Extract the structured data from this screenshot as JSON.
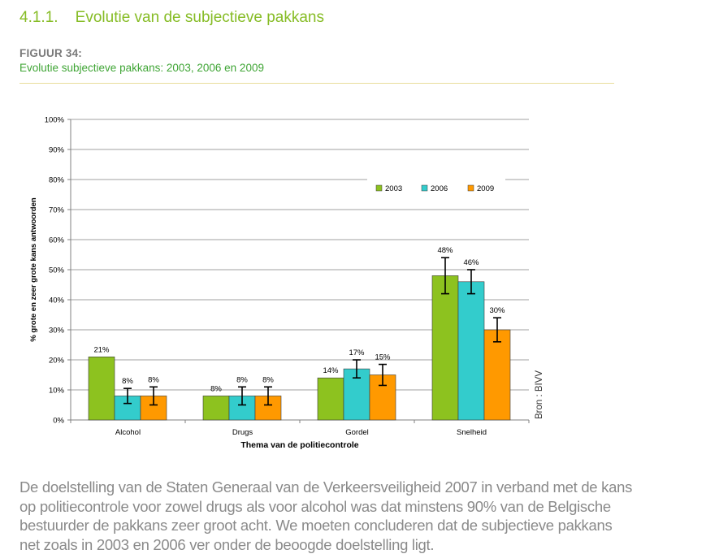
{
  "section": {
    "number": "4.1.1.",
    "title": "Evolutie van de subjectieve pakkans"
  },
  "figure": {
    "label": "FIGUUR 34:",
    "caption": "Evolutie subjectieve pakkans: 2003, 2006 en 2009",
    "source": "Bron : BIVV"
  },
  "colors": {
    "2003": "#8dc21f",
    "2006": "#33cccc",
    "2009": "#ff9900",
    "heading": "#86bc25",
    "caption": "#3fa535"
  },
  "chart_data": {
    "type": "bar",
    "categories": [
      "Alcohol",
      "Drugs",
      "Gordel",
      "Snelheid"
    ],
    "series": [
      {
        "name": "2003",
        "values": [
          21,
          8,
          14,
          48
        ],
        "labels": [
          "21%",
          "8%",
          "14%",
          "48%"
        ],
        "error_plus_minus": [
          0,
          0,
          0,
          6
        ]
      },
      {
        "name": "2006",
        "values": [
          8,
          8,
          17,
          46
        ],
        "labels": [
          "8%",
          "8%",
          "17%",
          "46%"
        ],
        "error_plus_minus": [
          2.5,
          3,
          3,
          4
        ]
      },
      {
        "name": "2009",
        "values": [
          8,
          8,
          15,
          30
        ],
        "labels": [
          "8%",
          "8%",
          "15%",
          "30%"
        ],
        "error_plus_minus": [
          3,
          3,
          3.5,
          4
        ]
      }
    ],
    "xlabel": "Thema van de politiecontrole",
    "ylabel": "% grote en zeer grote kans antwoorden",
    "ylim": [
      0,
      100
    ],
    "yticks": [
      "0%",
      "10%",
      "20%",
      "30%",
      "40%",
      "50%",
      "60%",
      "70%",
      "80%",
      "90%",
      "100%"
    ],
    "grid": true,
    "legend_position": "top-right"
  },
  "body": {
    "lines": [
      "De doelstelling van de Staten Generaal van de Verkeersveiligheid 2007 in verband met de kans",
      "op politiecontrole voor zowel drugs als voor alcohol was dat minstens 90% van de Belgische",
      "bestuurder de pakkans zeer groot acht. We moeten concluderen dat de subjectieve pakkans",
      "net zoals in 2003 en 2006 ver onder de beoogde doelstelling ligt."
    ]
  }
}
